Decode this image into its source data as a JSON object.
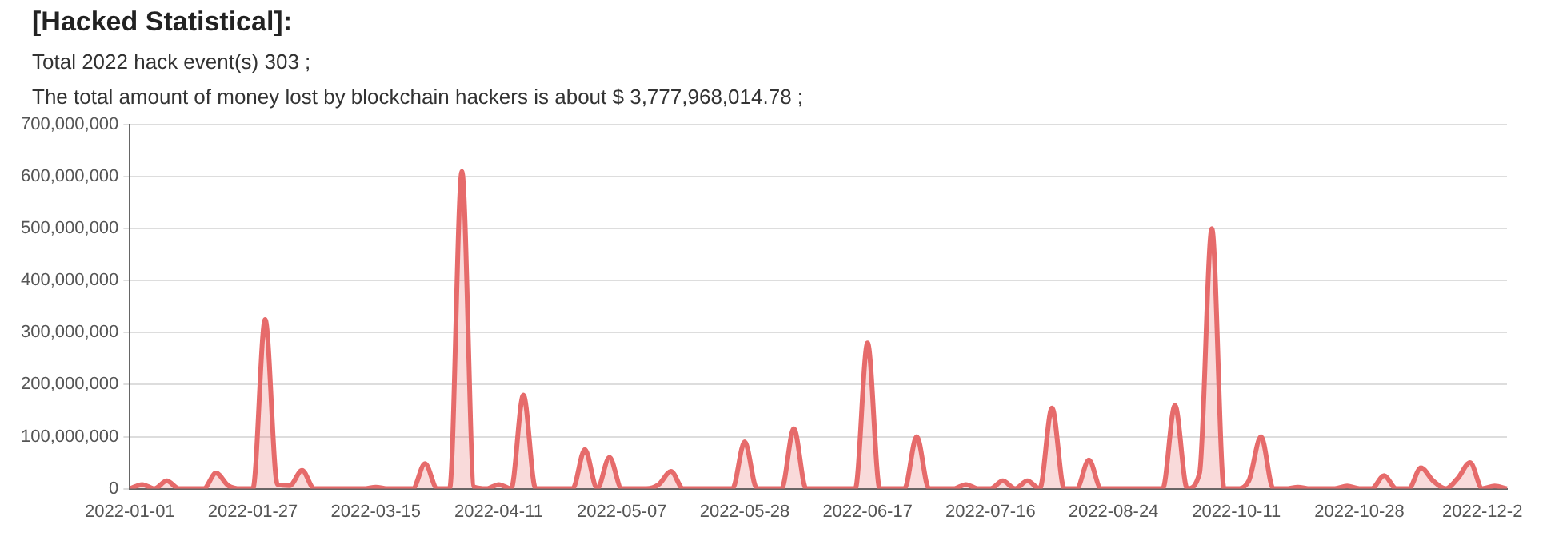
{
  "chart_data": {
    "type": "area",
    "title": "[Hacked Statistical]:",
    "annotations": [
      "Total 2022 hack event(s) 303 ;",
      "The total amount of money lost by blockchain hackers is about $ 3,777,968,014.78 ;"
    ],
    "categories": [
      "2022-01-01",
      null,
      null,
      null,
      null,
      null,
      null,
      null,
      null,
      null,
      "2022-01-27",
      null,
      null,
      null,
      null,
      null,
      null,
      null,
      null,
      null,
      "2022-03-15",
      null,
      null,
      null,
      null,
      null,
      null,
      null,
      null,
      null,
      "2022-04-11",
      null,
      null,
      null,
      null,
      null,
      null,
      null,
      null,
      null,
      "2022-05-07",
      null,
      null,
      null,
      null,
      null,
      null,
      null,
      null,
      null,
      "2022-05-28",
      null,
      null,
      null,
      null,
      null,
      null,
      null,
      null,
      null,
      "2022-06-17",
      null,
      null,
      null,
      null,
      null,
      null,
      null,
      null,
      null,
      "2022-07-16",
      null,
      null,
      null,
      null,
      null,
      null,
      null,
      null,
      null,
      "2022-08-24",
      null,
      null,
      null,
      null,
      null,
      null,
      null,
      null,
      null,
      "2022-10-11",
      null,
      null,
      null,
      null,
      null,
      null,
      null,
      null,
      null,
      "2022-10-28",
      null,
      null,
      null,
      null,
      null,
      null,
      null,
      null,
      null,
      "2022-12-2",
      null,
      null
    ],
    "series": [
      {
        "color": "#e66b6b",
        "values": [
          0,
          8000000,
          0,
          15000000,
          0,
          0,
          0,
          30000000,
          6000000,
          0,
          0,
          325000000,
          8000000,
          6000000,
          35000000,
          0,
          0,
          0,
          0,
          0,
          3000000,
          0,
          0,
          0,
          48000000,
          0,
          0,
          610000000,
          3000000,
          0,
          8000000,
          0,
          180000000,
          0,
          0,
          0,
          0,
          75000000,
          0,
          60000000,
          0,
          0,
          0,
          8000000,
          33000000,
          0,
          0,
          0,
          0,
          0,
          90000000,
          0,
          0,
          0,
          115000000,
          0,
          0,
          0,
          0,
          0,
          280000000,
          0,
          0,
          0,
          100000000,
          0,
          0,
          0,
          8000000,
          0,
          0,
          15000000,
          0,
          15000000,
          0,
          155000000,
          0,
          0,
          55000000,
          0,
          0,
          0,
          0,
          0,
          0,
          160000000,
          0,
          30000000,
          500000000,
          0,
          0,
          15000000,
          100000000,
          0,
          0,
          3000000,
          0,
          0,
          0,
          5000000,
          0,
          0,
          25000000,
          0,
          0,
          40000000,
          15000000,
          0,
          20000000,
          50000000,
          0,
          5000000,
          0
        ]
      }
    ],
    "ylim": [
      0,
      700000000
    ],
    "yticks": [
      0,
      {
        "value": 100000000,
        "label": "100,000,000"
      },
      {
        "value": 200000000,
        "label": "200,000,000"
      },
      {
        "value": 300000000,
        "label": "300,000,000"
      },
      {
        "value": 400000000,
        "label": "400,000,000"
      },
      {
        "value": 500000000,
        "label": "500,000,000"
      },
      {
        "value": 600000000,
        "label": "600,000,000"
      },
      {
        "value": 700000000,
        "label": "700,000,000"
      }
    ],
    "grid": "y",
    "marker": "none",
    "line_style": "solid"
  }
}
